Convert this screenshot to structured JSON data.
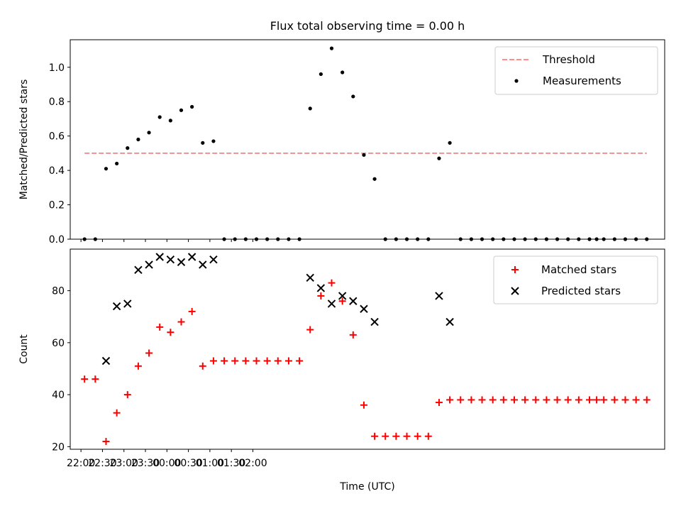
{
  "figure": {
    "title": "Flux total observing time = 0.00 h",
    "xlabel": "Time (UTC)"
  },
  "chart_data": [
    {
      "type": "scatter",
      "ylabel": "Matched/Predicted stars",
      "ylim": [
        0,
        1.16
      ],
      "yticks": [
        "0.0",
        "0.2",
        "0.4",
        "0.6",
        "0.8",
        "1.0"
      ],
      "xlim": [
        1305,
        2135
      ],
      "legend": {
        "placement": "top-right"
      },
      "threshold": {
        "name": "Threshold",
        "value": 0.5,
        "x": [
          1325,
          2110
        ],
        "color": "#ff7f7f"
      },
      "series": [
        {
          "name": "Measurements",
          "color": "#000000",
          "x": [
            1325,
            1340,
            1355,
            1370,
            1385,
            1400,
            1415,
            1430,
            1445,
            1460,
            1475,
            1490,
            1505,
            1520,
            1535,
            1550,
            1565,
            1580,
            1595,
            1610,
            1625,
            1640,
            1655,
            1670,
            1685,
            1700,
            1715,
            1730,
            1745,
            1760,
            1775,
            1790,
            1805,
            1820,
            1835,
            1850,
            1865,
            1880,
            1895,
            1910,
            1925,
            1940,
            1955,
            1970,
            1985,
            2000,
            2015,
            2030,
            2040,
            2050,
            2065,
            2080,
            2095,
            2110
          ],
          "y": [
            0,
            0,
            0.41,
            0.44,
            0.53,
            0.58,
            0.62,
            0.71,
            0.69,
            0.75,
            0.77,
            0.56,
            0.57,
            0,
            0,
            0,
            0,
            0,
            0,
            0,
            0,
            0.76,
            0.96,
            1.11,
            0.97,
            0.83,
            0.49,
            0.35,
            0,
            0,
            0,
            0,
            0,
            0.47,
            0.56,
            0,
            0,
            0,
            0,
            0,
            0,
            0,
            0,
            0,
            0,
            0,
            0,
            0,
            0,
            0,
            0,
            0,
            0,
            0
          ]
        }
      ]
    },
    {
      "type": "scatter",
      "ylabel": "Count",
      "ylim": [
        19,
        96
      ],
      "yticks": [
        "20",
        "40",
        "60",
        "80"
      ],
      "xlim": [
        1305,
        2135
      ],
      "xticks": [
        "22:00",
        "22:30",
        "23:00",
        "23:30",
        "00:00",
        "00:30",
        "01:00",
        "01:30",
        "02:00"
      ],
      "legend": {
        "placement": "top-right"
      },
      "series": [
        {
          "name": "Matched stars",
          "color": "#ff0000",
          "x": [
            1325,
            1340,
            1355,
            1370,
            1385,
            1400,
            1415,
            1430,
            1445,
            1460,
            1475,
            1490,
            1505,
            1520,
            1535,
            1550,
            1565,
            1580,
            1595,
            1610,
            1625,
            1640,
            1655,
            1670,
            1685,
            1700,
            1715,
            1730,
            1745,
            1760,
            1775,
            1790,
            1805,
            1820,
            1835,
            1850,
            1865,
            1880,
            1895,
            1910,
            1925,
            1940,
            1955,
            1970,
            1985,
            2000,
            2015,
            2030,
            2040,
            2050,
            2065,
            2080,
            2095,
            2110
          ],
          "y": [
            46,
            46,
            22,
            33,
            40,
            51,
            56,
            66,
            64,
            68,
            72,
            51,
            53,
            53,
            53,
            53,
            53,
            53,
            53,
            53,
            53,
            65,
            78,
            83,
            76,
            63,
            36,
            24,
            24,
            24,
            24,
            24,
            24,
            37,
            38,
            38,
            38,
            38,
            38,
            38,
            38,
            38,
            38,
            38,
            38,
            38,
            38,
            38,
            38,
            38,
            38,
            38,
            38,
            38
          ]
        },
        {
          "name": "Predicted stars",
          "color": "#000000",
          "x": [
            1355,
            1370,
            1385,
            1400,
            1415,
            1430,
            1445,
            1460,
            1475,
            1490,
            1505,
            1640,
            1655,
            1670,
            1685,
            1700,
            1715,
            1730,
            1820,
            1835
          ],
          "y": [
            53,
            74,
            75,
            88,
            90,
            93,
            92,
            91,
            93,
            90,
            92,
            85,
            81,
            75,
            78,
            76,
            73,
            68,
            78,
            68
          ]
        }
      ]
    }
  ]
}
